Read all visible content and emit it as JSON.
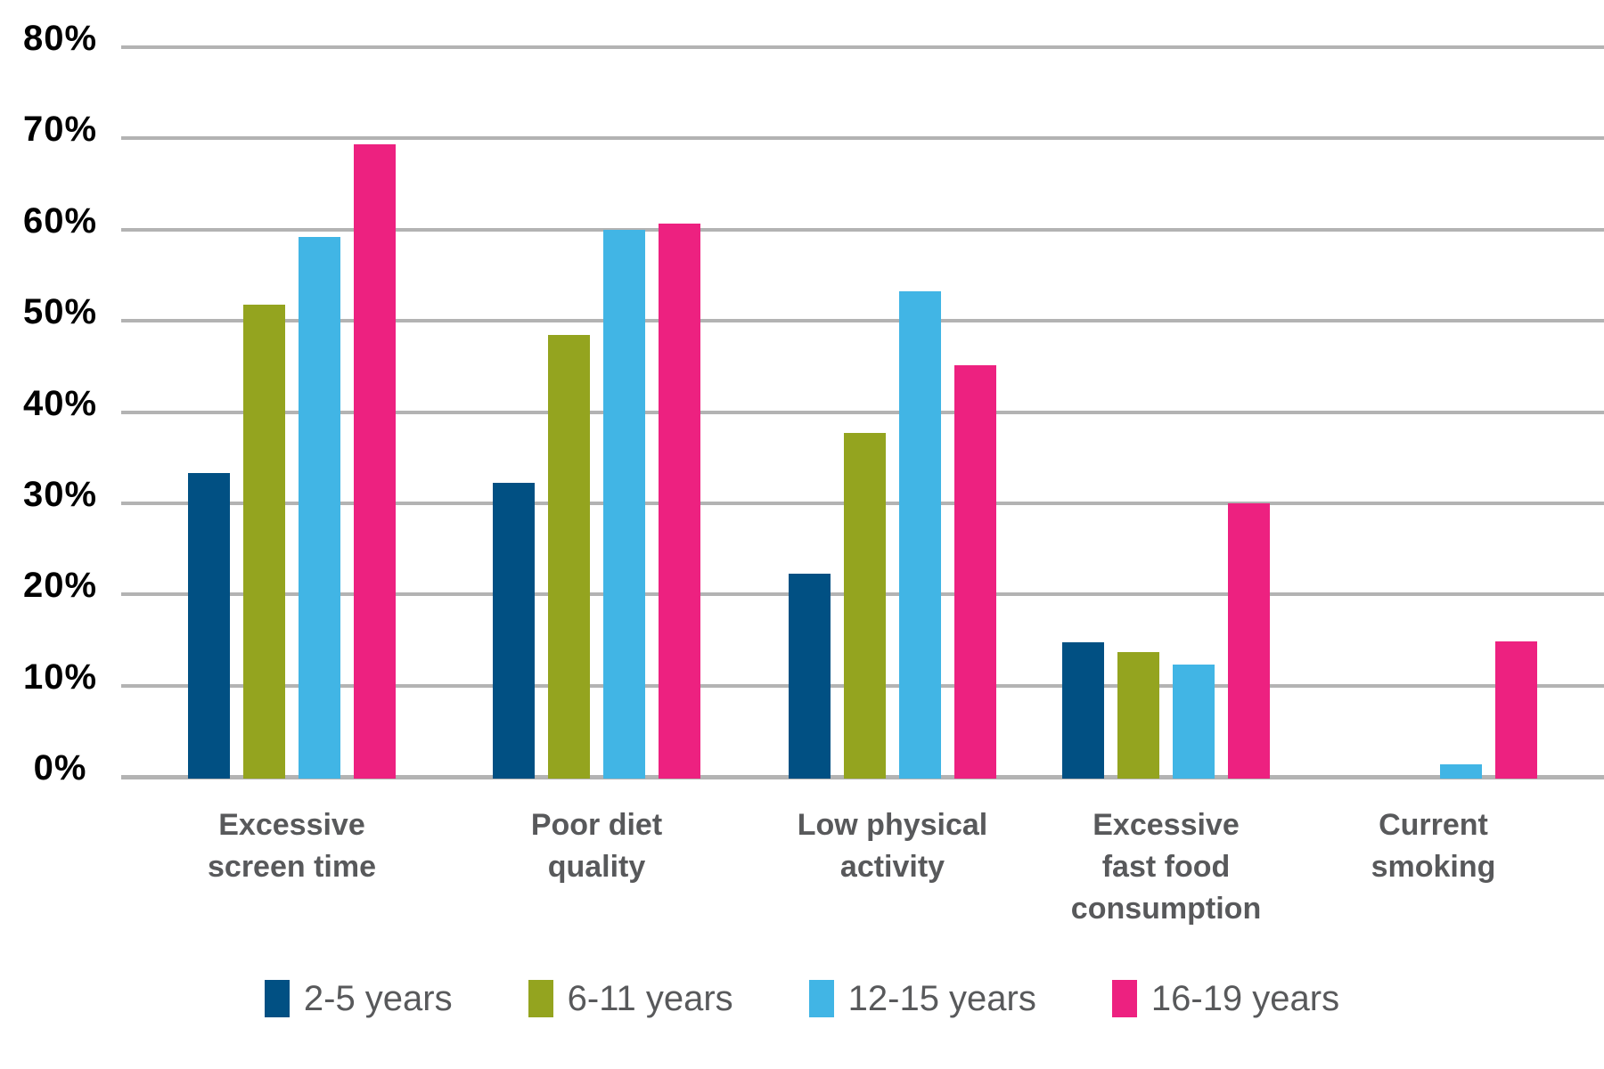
{
  "chart_data": {
    "type": "bar",
    "title": "",
    "categories": [
      "Excessive screen time",
      "Poor diet quality",
      "Low physical activity",
      "Excessive fast food consumption",
      "Current smoking"
    ],
    "category_lines": [
      [
        "Excessive",
        "screen time"
      ],
      [
        "Poor diet",
        "quality"
      ],
      [
        "Low physical",
        "activity"
      ],
      [
        "Excessive",
        "fast food",
        "consumption"
      ],
      [
        "Current",
        "smoking"
      ]
    ],
    "series": [
      {
        "name": "2-5 years",
        "color": "#015083",
        "values": [
          33.5,
          32.4,
          22.5,
          14.9,
          0
        ]
      },
      {
        "name": "6-11 years",
        "color": "#94a41f",
        "values": [
          52.0,
          48.6,
          37.9,
          13.9,
          0
        ]
      },
      {
        "name": "12-15 years",
        "color": "#41b5e5",
        "values": [
          59.4,
          60.2,
          53.4,
          12.5,
          1.6
        ]
      },
      {
        "name": "16-19 years",
        "color": "#ed2180",
        "values": [
          69.5,
          60.9,
          45.3,
          30.2,
          15.0
        ]
      }
    ],
    "ylabel": "",
    "xlabel": "",
    "ylim": [
      0,
      80
    ],
    "ytick_step": 10,
    "ytick_labels": [
      "0%",
      "10%",
      "20%",
      "30%",
      "40%",
      "50%",
      "60%",
      "70%",
      "80%"
    ],
    "grid": true,
    "grid_color": "#b3b3b3",
    "axis_label_color": "#000000",
    "category_label_color": "#58595b",
    "legend_position": "bottom"
  }
}
